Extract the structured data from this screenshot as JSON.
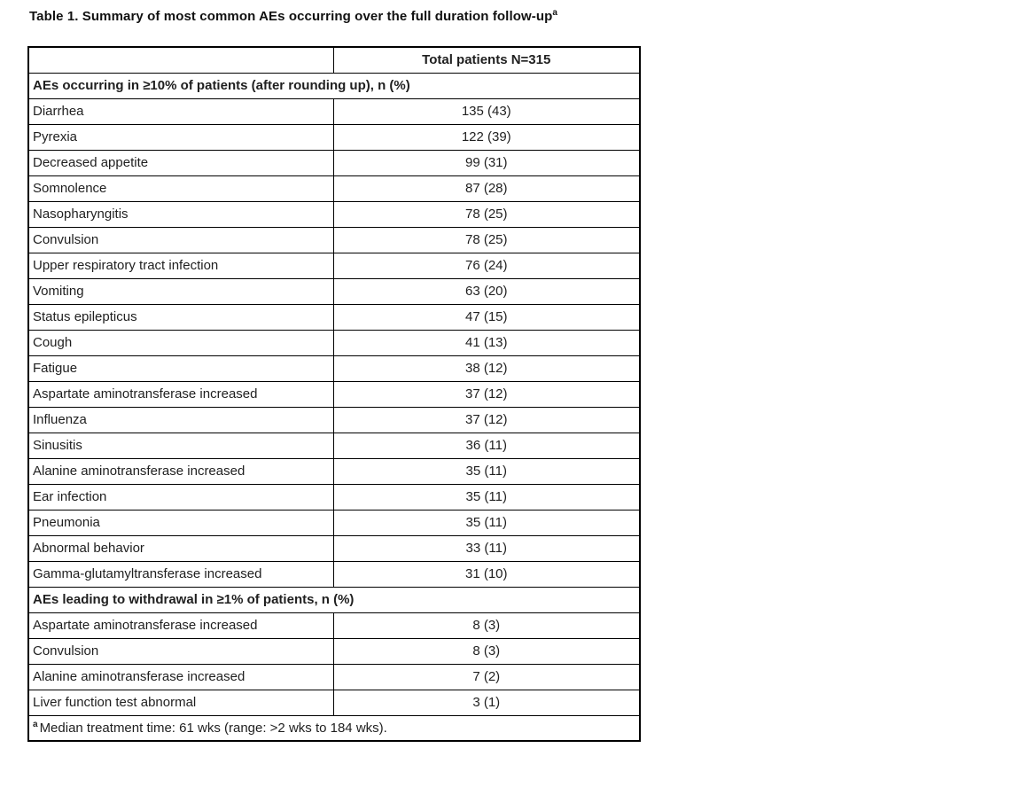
{
  "title": {
    "text": "Table 1. Summary of most common AEs occurring over the full duration follow-up",
    "superscript": "a"
  },
  "table": {
    "header": {
      "col1": "",
      "col2": "Total patients N=315"
    },
    "sections": [
      {
        "label": "AEs occurring in ≥10% of patients (after rounding up), n (%)",
        "rows": [
          {
            "ae": "Diarrhea",
            "value": "135 (43)"
          },
          {
            "ae": "Pyrexia",
            "value": "122 (39)"
          },
          {
            "ae": "Decreased appetite",
            "value": "99 (31)"
          },
          {
            "ae": "Somnolence",
            "value": "87 (28)"
          },
          {
            "ae": "Nasopharyngitis",
            "value": "78 (25)"
          },
          {
            "ae": "Convulsion",
            "value": "78 (25)"
          },
          {
            "ae": "Upper respiratory tract infection",
            "value": "76 (24)"
          },
          {
            "ae": "Vomiting",
            "value": "63 (20)"
          },
          {
            "ae": "Status epilepticus",
            "value": "47 (15)"
          },
          {
            "ae": "Cough",
            "value": "41 (13)"
          },
          {
            "ae": "Fatigue",
            "value": "38 (12)"
          },
          {
            "ae": "Aspartate aminotransferase increased",
            "value": "37 (12)"
          },
          {
            "ae": "Influenza",
            "value": "37 (12)"
          },
          {
            "ae": "Sinusitis",
            "value": "36 (11)"
          },
          {
            "ae": "Alanine aminotransferase increased",
            "value": "35 (11)"
          },
          {
            "ae": "Ear infection",
            "value": "35 (11)"
          },
          {
            "ae": "Pneumonia",
            "value": "35 (11)"
          },
          {
            "ae": "Abnormal behavior",
            "value": "33 (11)"
          },
          {
            "ae": "Gamma-glutamyltransferase increased",
            "value": "31 (10)"
          }
        ]
      },
      {
        "label": "AEs leading to withdrawal in ≥1% of patients, n (%)",
        "rows": [
          {
            "ae": "Aspartate aminotransferase increased",
            "value": "8 (3)"
          },
          {
            "ae": "Convulsion",
            "value": "8 (3)"
          },
          {
            "ae": "Alanine aminotransferase increased",
            "value": "7 (2)"
          },
          {
            "ae": "Liver function test abnormal",
            "value": "3 (1)"
          }
        ]
      }
    ],
    "footnote": {
      "marker": "a",
      "text": "Median treatment time: 61 wks (range: >2 wks to 184 wks)."
    }
  }
}
